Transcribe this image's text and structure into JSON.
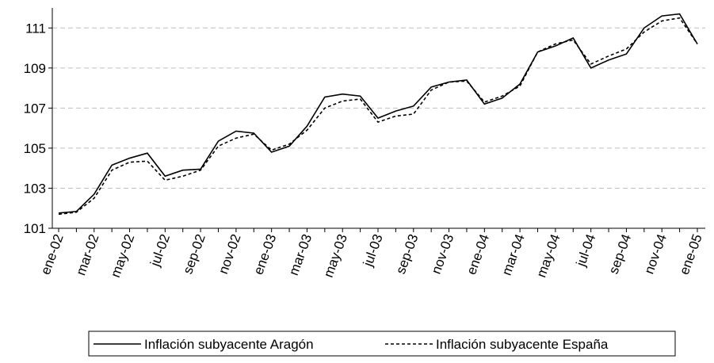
{
  "chart_data": {
    "type": "line",
    "categories": [
      "ene-02",
      null,
      "mar-02",
      null,
      "may-02",
      null,
      "jul-02",
      null,
      "sep-02",
      null,
      "nov-02",
      null,
      "ene-03",
      null,
      "mar-03",
      null,
      "may-03",
      null,
      "jul-03",
      null,
      "sep-03",
      null,
      "nov-03",
      null,
      "ene-04",
      null,
      "mar-04",
      null,
      "may-04",
      null,
      "jul-04",
      null,
      "sep-04",
      null,
      "nov-04",
      null,
      "ene-05"
    ],
    "series": [
      {
        "name": "Inflación subyacente Aragón",
        "color": "#000000",
        "dash": "solid",
        "values": [
          101.76,
          101.84,
          102.7,
          104.15,
          104.5,
          104.75,
          103.6,
          103.9,
          103.95,
          105.35,
          105.85,
          105.75,
          104.8,
          105.1,
          106.1,
          107.55,
          107.7,
          107.6,
          106.5,
          106.85,
          107.1,
          108.05,
          108.3,
          108.4,
          107.2,
          107.5,
          108.2,
          109.8,
          110.1,
          110.5,
          109.0,
          109.4,
          109.7,
          111.0,
          111.6,
          111.7,
          110.2
        ]
      },
      {
        "name": "Inflación subyacente España",
        "color": "#000000",
        "dash": "dotted",
        "values": [
          101.7,
          101.8,
          102.5,
          103.9,
          104.3,
          104.35,
          103.4,
          103.6,
          103.9,
          105.1,
          105.5,
          105.7,
          104.9,
          105.2,
          105.9,
          107.0,
          107.35,
          107.45,
          106.3,
          106.6,
          106.7,
          107.9,
          108.3,
          108.35,
          107.3,
          107.6,
          108.1,
          109.8,
          110.2,
          110.4,
          109.2,
          109.6,
          109.95,
          110.8,
          111.35,
          111.5,
          110.2
        ]
      }
    ],
    "ylim": [
      101,
      112
    ],
    "yticks": [
      101,
      103,
      105,
      107,
      109,
      111
    ],
    "grid": true,
    "legend": "bottom"
  }
}
